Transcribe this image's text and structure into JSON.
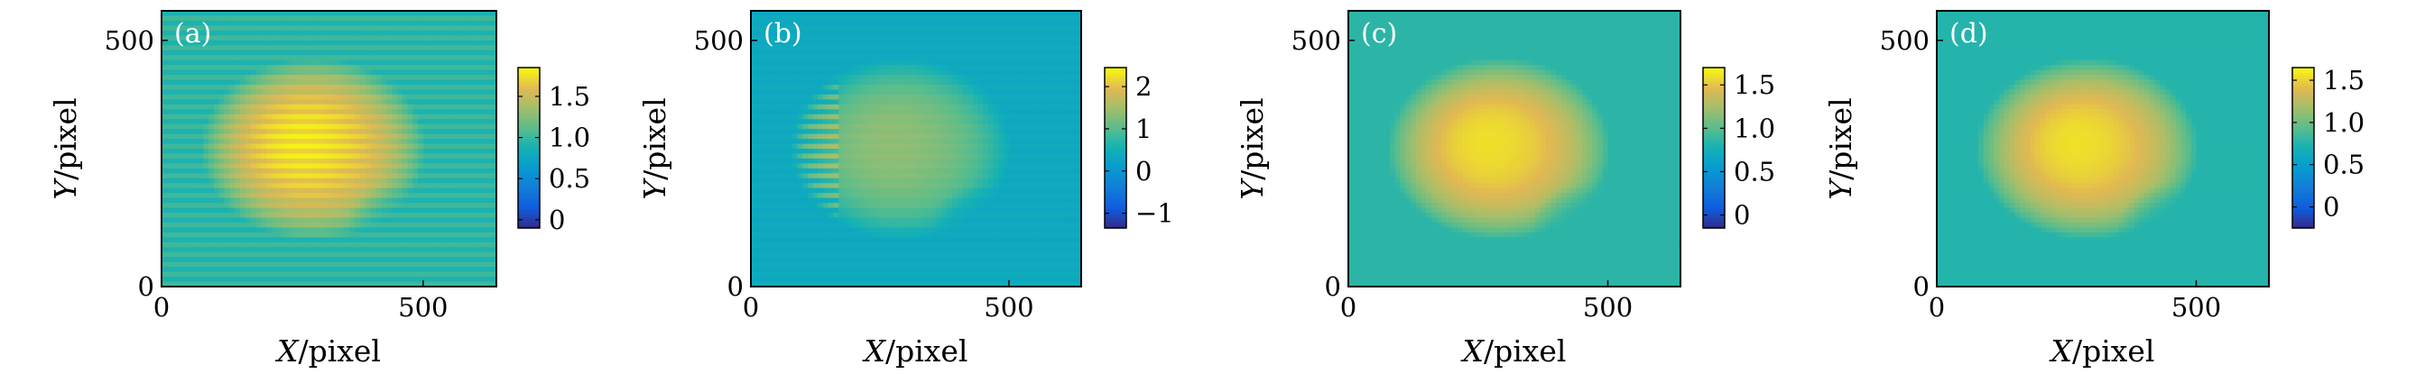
{
  "figure": {
    "colors": {
      "background": "#ffffff",
      "axis": "#000000",
      "panel_label": "#ffffff"
    }
  },
  "chart_data": [
    {
      "type": "heatmap",
      "panel_label": "(a)",
      "xlabel_var": "X",
      "xlabel_unit": "/pixel",
      "ylabel_var": "Y",
      "ylabel_unit": "/pixel",
      "xlim": [
        0,
        640
      ],
      "ylim": [
        0,
        560
      ],
      "x_ticks": [
        0,
        500
      ],
      "y_ticks": [
        0,
        500
      ],
      "colorbar": {
        "min": -0.1,
        "max": 1.85,
        "ticks": [
          0,
          0.5,
          1.0,
          1.5
        ],
        "tick_labels": [
          "0",
          "0.5",
          "1.0",
          "1.5"
        ]
      },
      "colormap": "parula",
      "background_value": 0.95,
      "blob_peak_value": 1.75,
      "stripes": "strong"
    },
    {
      "type": "heatmap",
      "panel_label": "(b)",
      "xlabel_var": "X",
      "xlabel_unit": "/pixel",
      "ylabel_var": "Y",
      "ylabel_unit": "/pixel",
      "xlim": [
        0,
        640
      ],
      "ylim": [
        0,
        560
      ],
      "x_ticks": [
        0,
        500
      ],
      "y_ticks": [
        0,
        500
      ],
      "colorbar": {
        "min": -1.35,
        "max": 2.45,
        "ticks": [
          -1,
          0,
          1,
          2
        ],
        "tick_labels": [
          "−1",
          "0",
          "1",
          "2"
        ]
      },
      "colormap": "parula",
      "background_value": 0.35,
      "blob_peak_value": 1.35,
      "stripes": "left-comb"
    },
    {
      "type": "heatmap",
      "panel_label": "(c)",
      "xlabel_var": "X",
      "xlabel_unit": "/pixel",
      "ylabel_var": "Y",
      "ylabel_unit": "/pixel",
      "xlim": [
        0,
        640
      ],
      "ylim": [
        0,
        560
      ],
      "x_ticks": [
        0,
        500
      ],
      "y_ticks": [
        0,
        500
      ],
      "colorbar": {
        "min": -0.15,
        "max": 1.7,
        "ticks": [
          0,
          0.5,
          1.0,
          1.5
        ],
        "tick_labels": [
          "0",
          "0.5",
          "1.0",
          "1.5"
        ]
      },
      "colormap": "parula",
      "background_value": 0.85,
      "blob_peak_value": 1.6,
      "stripes": "none"
    },
    {
      "type": "heatmap",
      "panel_label": "(d)",
      "xlabel_var": "X",
      "xlabel_unit": "/pixel",
      "ylabel_var": "Y",
      "ylabel_unit": "/pixel",
      "xlim": [
        0,
        640
      ],
      "ylim": [
        0,
        560
      ],
      "x_ticks": [
        0,
        500
      ],
      "y_ticks": [
        0,
        500
      ],
      "colorbar": {
        "min": -0.25,
        "max": 1.65,
        "ticks": [
          0,
          0.5,
          1.0,
          1.5
        ],
        "tick_labels": [
          "0",
          "0.5",
          "1.0",
          "1.5"
        ]
      },
      "colormap": "parula",
      "background_value": 0.75,
      "blob_peak_value": 1.55,
      "stripes": "none"
    }
  ]
}
